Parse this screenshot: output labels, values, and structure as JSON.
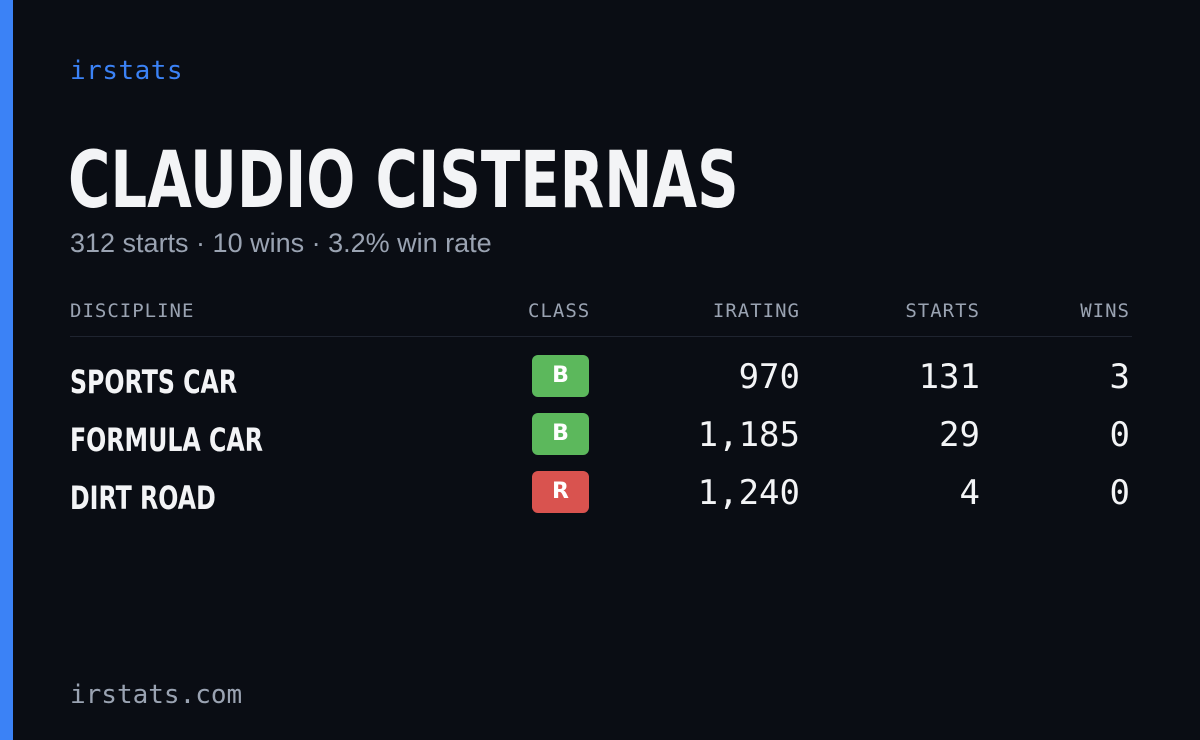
{
  "brand": "irstats",
  "driver_name": "CLAUDIO CISTERNAS",
  "summary": "312 starts · 10 wins · 3.2% win rate",
  "table": {
    "headers": {
      "discipline": "DISCIPLINE",
      "class": "CLASS",
      "irating": "IRATING",
      "starts": "STARTS",
      "wins": "WINS"
    },
    "rows": [
      {
        "discipline": "SPORTS CAR",
        "class": "B",
        "class_color": "#5cb85c",
        "irating": "970",
        "starts": "131",
        "wins": "3"
      },
      {
        "discipline": "FORMULA CAR",
        "class": "B",
        "class_color": "#5cb85c",
        "irating": "1,185",
        "starts": "29",
        "wins": "0"
      },
      {
        "discipline": "DIRT ROAD",
        "class": "R",
        "class_color": "#d9534f",
        "irating": "1,240",
        "starts": "4",
        "wins": "0"
      }
    ]
  },
  "footer": "irstats.com",
  "colors": {
    "accent": "#3b82f6",
    "background": "#0a0d14",
    "muted_text": "#9aa3b2",
    "primary_text": "#f3f4f6"
  }
}
